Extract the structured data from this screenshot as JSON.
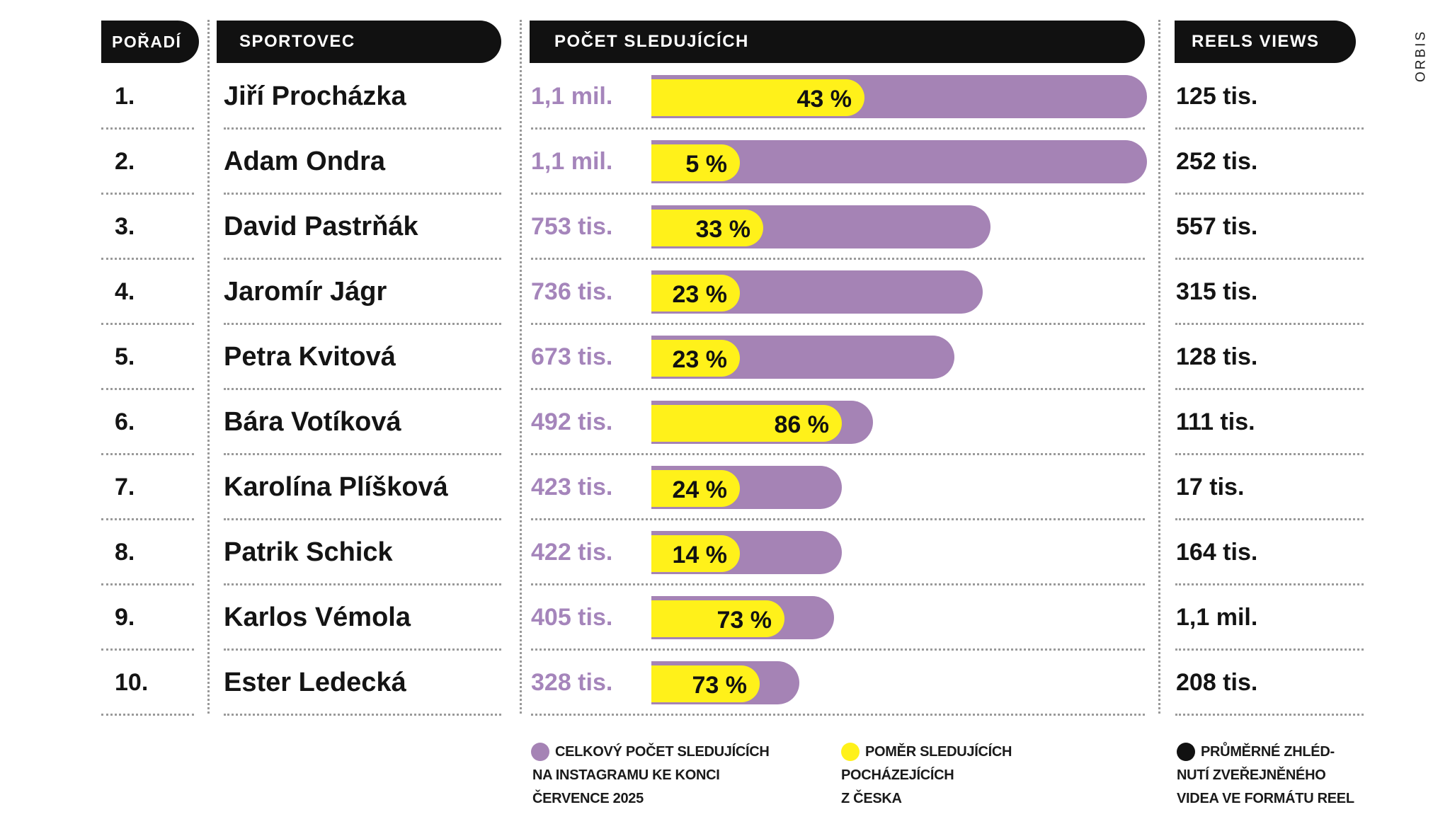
{
  "headers": {
    "rank": "POŘADÍ",
    "athlete": "SPORTOVEC",
    "followers": "POČET SLEDUJÍCÍCH",
    "reels": "REELS VIEWS"
  },
  "source": "ORBIS",
  "colors": {
    "followers_bar": "#a583b5",
    "czech_share_bar": "#fff11a",
    "reels": "#111111",
    "followers_text": "#a585bb"
  },
  "chart_data": {
    "type": "bar",
    "categories": [
      "Jiří Procházka",
      "Adam Ondra",
      "David Pastrňák",
      "Jaromír Jágr",
      "Petra Kvitová",
      "Bára Votíková",
      "Karolína Plíšková",
      "Patrik Schick",
      "Karlos Vémola",
      "Ester Ledecká"
    ],
    "ranks": [
      "1.",
      "2.",
      "3.",
      "4.",
      "5.",
      "6.",
      "7.",
      "8.",
      "9.",
      "10."
    ],
    "followers_labels": [
      "1,1 mil.",
      "1,1 mil.",
      "753 tis.",
      "736 tis.",
      "673 tis.",
      "492 tis.",
      "423 tis.",
      "422 tis.",
      "405 tis.",
      "328 tis."
    ],
    "followers_values": [
      1100000,
      1100000,
      753000,
      736000,
      673000,
      492000,
      423000,
      422000,
      405000,
      328000
    ],
    "czech_share_pct": [
      43,
      5,
      33,
      23,
      23,
      86,
      24,
      14,
      73,
      73
    ],
    "czech_share_labels": [
      "43 %",
      "5 %",
      "33 %",
      "23 %",
      "23 %",
      "86 %",
      "24 %",
      "14 %",
      "73 %",
      "73 %"
    ],
    "reels_labels": [
      "125 tis.",
      "252 tis.",
      "557 tis.",
      "315 tis.",
      "128 tis.",
      "111 tis.",
      "17 tis.",
      "164 tis.",
      "1,1 mil.",
      "208 tis."
    ],
    "reels_values": [
      125000,
      252000,
      557000,
      315000,
      128000,
      111000,
      17000,
      164000,
      1100000,
      208000
    ],
    "legend": [
      {
        "color": "#a583b5",
        "text": "CELKOVÝ POČET SLEDUJÍCÍCH\nNA INSTAGRAMU KE KONCI\nČERVENCE 2025"
      },
      {
        "color": "#fff11a",
        "text": "POMĚR SLEDUJÍCÍCH\nPOCHÁZEJÍCÍCH\nZ ČESKA"
      },
      {
        "color": "#111111",
        "text": "PRŮMĚRNÉ ZHLÉD-\nNUTÍ ZVEŘEJNĚNÉHO\nVIDEA VE FORMÁTU REEL"
      }
    ]
  }
}
